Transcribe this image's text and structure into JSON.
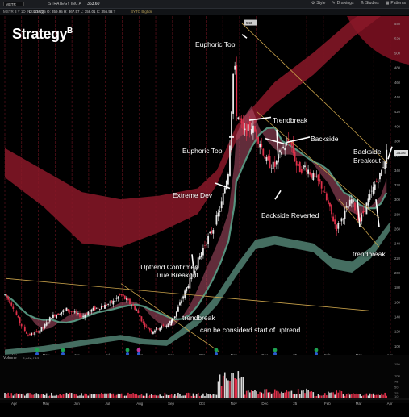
{
  "topbar": {
    "symbol": "MSTR",
    "company": "STRATEGY INC A",
    "price": "363.60",
    "right_items": [
      "Style",
      "Drawings",
      "Studies",
      "Patterns"
    ]
  },
  "subbar": {
    "title": "MSTR 3 Y 1D [NASDAQ]",
    "quote": "D: 3/18/25  O: 359.95  H: 367.57  L: 358.01  C: 356.56",
    "rt": "R:T",
    "brand": "BYTO Bigtide"
  },
  "logo": {
    "text": "Strategy",
    "sup": "B"
  },
  "annotations": [
    "Euphoric Top",
    "Trendbreak",
    "Backside",
    "Euphoric Top",
    "Backside Breakout",
    "Extreme Dev",
    "Backside Reverted",
    "trendbreak",
    "Uptrend Confirmed True Breakout",
    "trendbreak",
    "can be considerd start of uptrend"
  ],
  "chart_data": {
    "type": "candlestick",
    "title": "",
    "x_labels": [
      "Apr",
      "May",
      "Jun",
      "Jul",
      "Aug",
      "Sep",
      "Oct",
      "Nov",
      "Dec",
      "25",
      "Feb",
      "Mar",
      "Apr"
    ],
    "y_ticks": [
      100,
      120,
      140,
      160,
      180,
      200,
      220,
      240,
      260,
      280,
      300,
      320,
      340,
      360,
      380,
      400,
      420,
      440,
      460,
      480,
      500,
      520,
      540
    ],
    "ylim": [
      90,
      550
    ],
    "last_price_label": "363.6",
    "peak_label": "543",
    "volume_label": "Volume",
    "volume_value": "8,322,744",
    "volume_ticks": [
      10,
      25,
      50,
      75,
      100,
      150
    ],
    "close_path": [
      [
        0,
        170
      ],
      [
        0.02,
        155
      ],
      [
        0.04,
        130
      ],
      [
        0.06,
        115
      ],
      [
        0.08,
        118
      ],
      [
        0.1,
        125
      ],
      [
        0.12,
        140
      ],
      [
        0.14,
        145
      ],
      [
        0.16,
        150
      ],
      [
        0.18,
        145
      ],
      [
        0.2,
        140
      ],
      [
        0.22,
        148
      ],
      [
        0.24,
        152
      ],
      [
        0.26,
        155
      ],
      [
        0.28,
        160
      ],
      [
        0.3,
        170
      ],
      [
        0.32,
        160
      ],
      [
        0.34,
        150
      ],
      [
        0.36,
        130
      ],
      [
        0.38,
        120
      ],
      [
        0.4,
        125
      ],
      [
        0.42,
        128
      ],
      [
        0.44,
        140
      ],
      [
        0.46,
        165
      ],
      [
        0.48,
        190
      ],
      [
        0.5,
        215
      ],
      [
        0.52,
        240
      ],
      [
        0.54,
        260
      ],
      [
        0.56,
        290
      ],
      [
        0.58,
        340
      ],
      [
        0.595,
        500
      ],
      [
        0.6,
        420
      ],
      [
        0.62,
        390
      ],
      [
        0.64,
        400
      ],
      [
        0.66,
        380
      ],
      [
        0.68,
        350
      ],
      [
        0.7,
        345
      ],
      [
        0.72,
        370
      ],
      [
        0.74,
        380
      ],
      [
        0.76,
        340
      ],
      [
        0.78,
        345
      ],
      [
        0.8,
        330
      ],
      [
        0.82,
        320
      ],
      [
        0.84,
        290
      ],
      [
        0.86,
        260
      ],
      [
        0.88,
        280
      ],
      [
        0.9,
        300
      ],
      [
        0.92,
        270
      ],
      [
        0.94,
        295
      ],
      [
        0.96,
        320
      ],
      [
        0.975,
        335
      ],
      [
        0.99,
        363.6
      ]
    ]
  }
}
